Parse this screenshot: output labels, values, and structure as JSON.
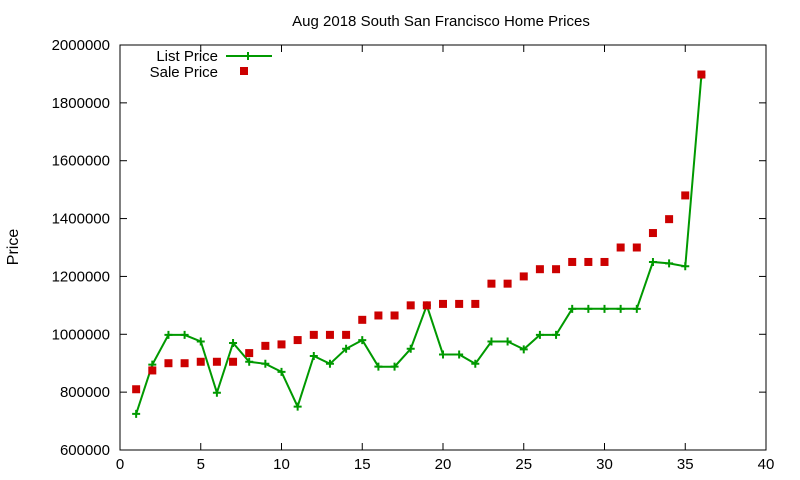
{
  "chart_data": {
    "type": "line",
    "title": "Aug 2018 South San Francisco Home Prices",
    "xlabel": "",
    "ylabel": "Price",
    "xlim": [
      0,
      40
    ],
    "ylim": [
      600000,
      2000000
    ],
    "x_ticks": [
      0,
      5,
      10,
      15,
      20,
      25,
      30,
      35,
      40
    ],
    "y_ticks": [
      600000,
      800000,
      1000000,
      1200000,
      1400000,
      1600000,
      1800000,
      2000000
    ],
    "grid": false,
    "legend_position": "top-left",
    "series": [
      {
        "name": "List Price",
        "style": "line+plus",
        "color": "#009900",
        "x": [
          1,
          2,
          3,
          4,
          5,
          6,
          7,
          8,
          9,
          10,
          11,
          12,
          13,
          14,
          15,
          16,
          17,
          18,
          19,
          20,
          21,
          22,
          23,
          24,
          25,
          26,
          27,
          28,
          29,
          30,
          31,
          32,
          33,
          34,
          35,
          36
        ],
        "y": [
          725000,
          895000,
          998000,
          998000,
          975000,
          798000,
          970000,
          905000,
          898000,
          870000,
          750000,
          925000,
          898000,
          950000,
          980000,
          888000,
          888000,
          950000,
          1100000,
          930000,
          930000,
          898000,
          975000,
          975000,
          948000,
          998000,
          998000,
          1088000,
          1088000,
          1088000,
          1088000,
          1088000,
          1250000,
          1245000,
          1235000,
          1895000
        ]
      },
      {
        "name": "Sale Price",
        "style": "square",
        "color": "#cc0000",
        "x": [
          1,
          2,
          3,
          4,
          5,
          6,
          7,
          8,
          9,
          10,
          11,
          12,
          13,
          14,
          15,
          16,
          17,
          18,
          19,
          20,
          21,
          22,
          23,
          24,
          25,
          26,
          27,
          28,
          29,
          30,
          31,
          32,
          33,
          34,
          35,
          36
        ],
        "y": [
          810000,
          875000,
          900000,
          900000,
          905000,
          905000,
          905000,
          935000,
          960000,
          965000,
          980000,
          998000,
          998000,
          998000,
          1050000,
          1065000,
          1065000,
          1100000,
          1100000,
          1105000,
          1105000,
          1105000,
          1175000,
          1175000,
          1200000,
          1225000,
          1225000,
          1250000,
          1250000,
          1250000,
          1300000,
          1300000,
          1350000,
          1398000,
          1480000,
          1898000
        ]
      }
    ]
  }
}
